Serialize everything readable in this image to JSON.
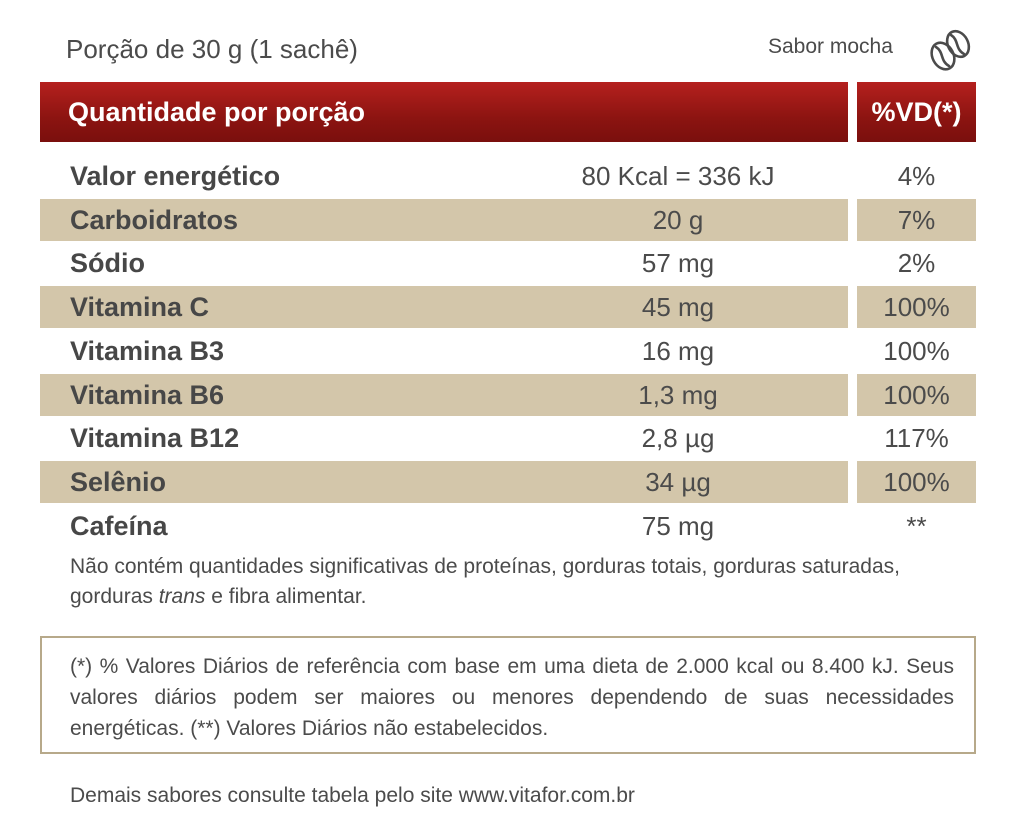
{
  "portion_label": "Porção de 30 g (1 sachê)",
  "flavor": {
    "label": "Sabor mocha",
    "icon": "coffee-bean-icon"
  },
  "table": {
    "header_name": "Quantidade por porção",
    "header_vd": "%VD(*)",
    "band_color": "#d3c6aa",
    "header_color": "#8c1411",
    "rows": [
      {
        "name": "Valor energético",
        "amount": "80 Kcal = 336 kJ",
        "vd": "4%"
      },
      {
        "name": "Carboidratos",
        "amount": "20 g",
        "vd": "7%"
      },
      {
        "name": "Sódio",
        "amount": "57 mg",
        "vd": "2%"
      },
      {
        "name": "Vitamina C",
        "amount": "45 mg",
        "vd": "100%"
      },
      {
        "name": "Vitamina B3",
        "amount": "16 mg",
        "vd": "100%"
      },
      {
        "name": "Vitamina B6",
        "amount": "1,3 mg",
        "vd": "100%"
      },
      {
        "name": "Vitamina B12",
        "amount": "2,8 µg",
        "vd": "117%"
      },
      {
        "name": "Selênio",
        "amount": "34 µg",
        "vd": "100%"
      },
      {
        "name": "Cafeína",
        "amount": "75 mg",
        "vd": "**"
      }
    ]
  },
  "note": {
    "part1": "Não contém quantidades significativas de proteínas, gorduras totais, gorduras saturadas, gorduras ",
    "italic": "trans",
    "part2": " e fibra alimentar."
  },
  "footnote": "(*) % Valores Diários de referência com base em uma dieta de 2.000 kcal ou 8.400 kJ. Seus valores diários podem ser maiores ou menores dependendo de suas necessidades energéticas. (**) Valores Diários não estabelecidos.",
  "bottom_text": "Demais sabores consulte tabela pelo site www.vitafor.com.br"
}
